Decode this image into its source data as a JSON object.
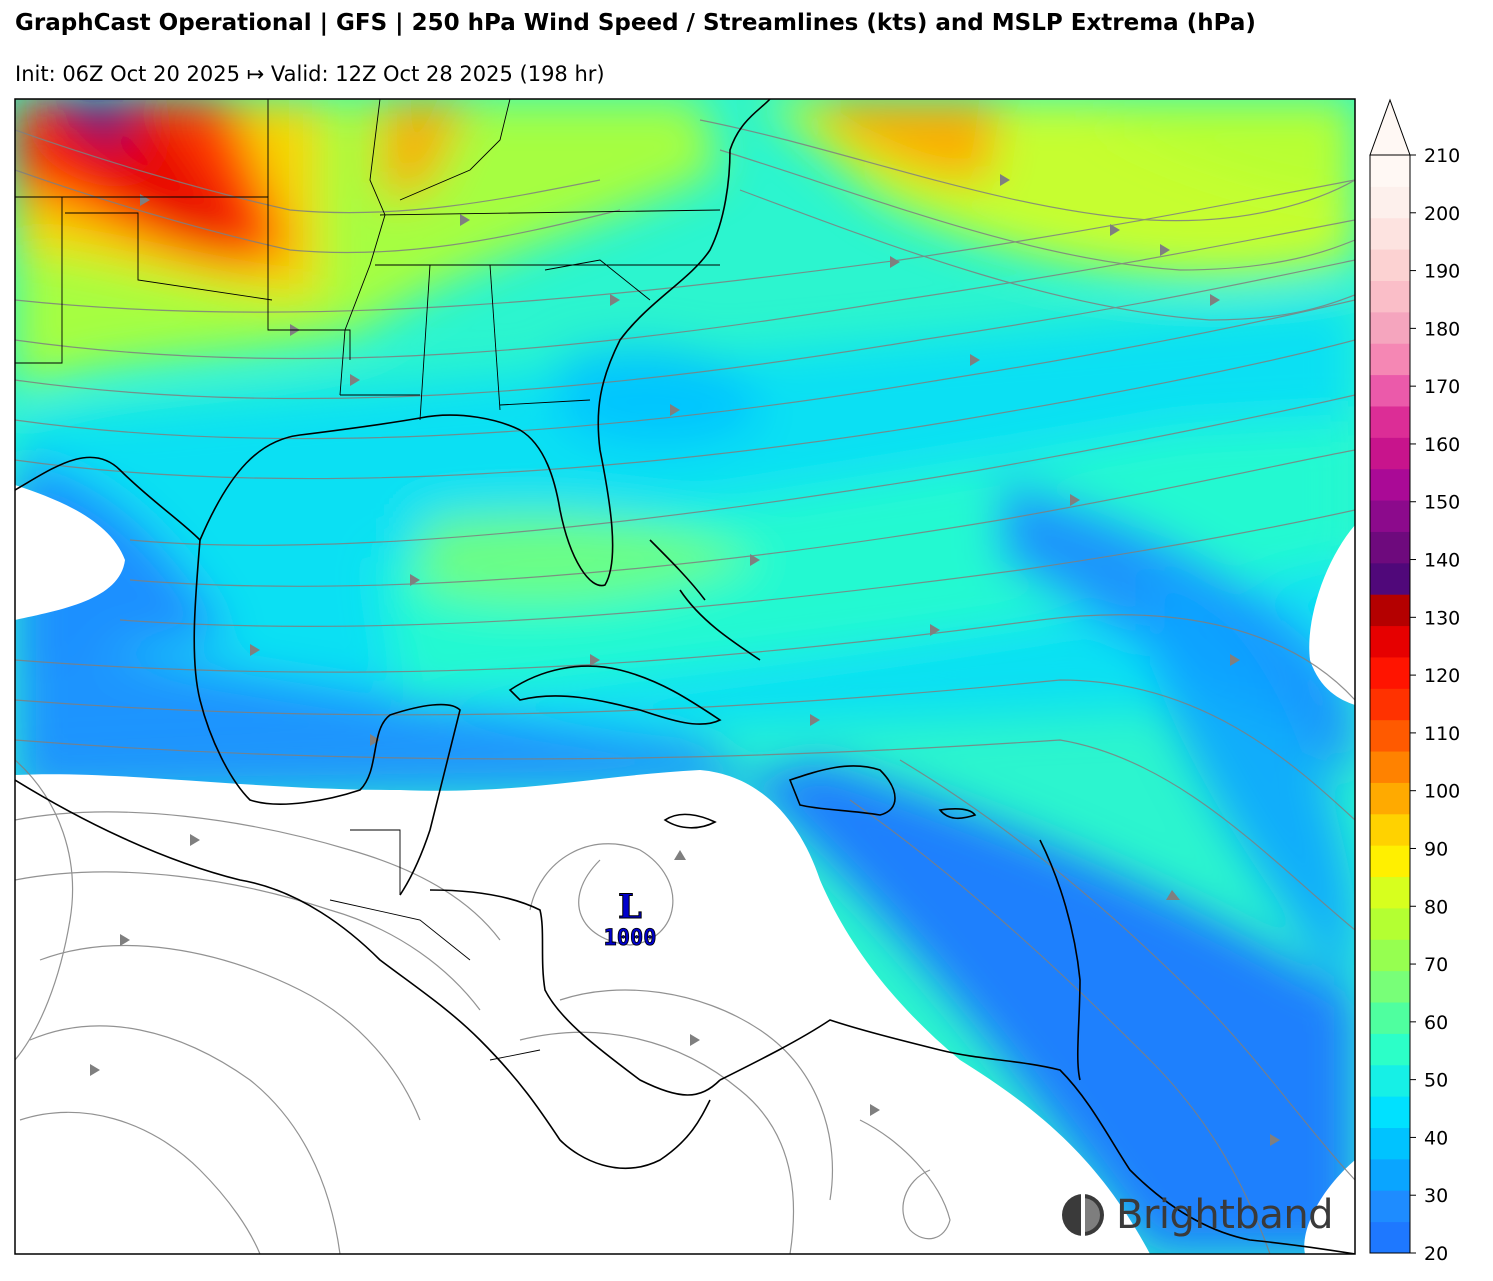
{
  "header": {
    "title": "GraphCast Operational | GFS | 250 hPa Wind Speed / Streamlines (kts) and MSLP Extrema (hPa)",
    "subtitle": "Init: 06Z Oct 20 2025 ↦ Valid: 12Z Oct 28 2025 (198 hr)"
  },
  "colorbar": {
    "ticks": [
      "210",
      "200",
      "190",
      "180",
      "170",
      "160",
      "150",
      "140",
      "130",
      "120",
      "110",
      "100",
      "90",
      "80",
      "70",
      "60",
      "50",
      "40",
      "30",
      "20"
    ],
    "min": 20,
    "max": 210,
    "extend": "max",
    "bands": [
      "#1e78ff",
      "#1e8cff",
      "#0aa5ff",
      "#00c3ff",
      "#00e1ff",
      "#16f0e6",
      "#2cffc8",
      "#4fff9f",
      "#78ff78",
      "#96ff50",
      "#b4ff32",
      "#d7ff1e",
      "#fff000",
      "#ffd200",
      "#ffaa00",
      "#ff8200",
      "#ff5a00",
      "#ff3200",
      "#ff1400",
      "#e60000",
      "#b40000",
      "#50087a",
      "#6e0a7d",
      "#8c0a8c",
      "#aa0a96",
      "#c8148c",
      "#dc2d96",
      "#eb5aaa",
      "#f587b4",
      "#f5a5be",
      "#fabec8",
      "#fcd2d2",
      "#fde3e0",
      "#fdf0ec",
      "#fff8f4"
    ]
  },
  "pressure_extremum": {
    "label": "L",
    "value": "1000"
  },
  "brand": {
    "name": "Brightband"
  }
}
